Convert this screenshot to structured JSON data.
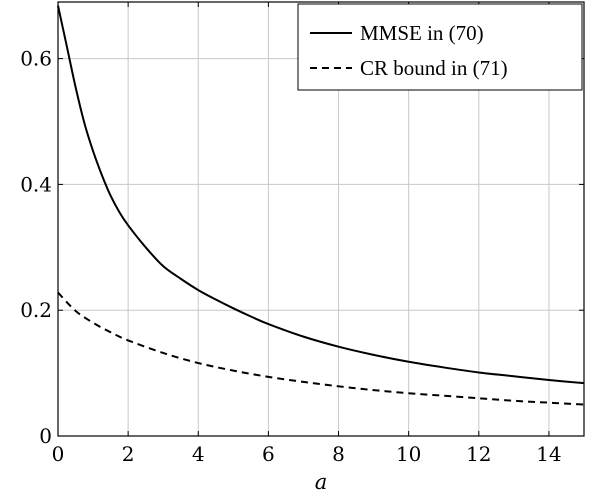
{
  "chart_data": {
    "type": "line",
    "xlabel": "a",
    "ylabel": "",
    "xlim": [
      0,
      15
    ],
    "ylim": [
      0,
      0.69
    ],
    "grid": true,
    "legend_position": "top-right",
    "x_ticks": [
      0,
      2,
      4,
      6,
      8,
      10,
      12,
      14
    ],
    "x_tick_labels": [
      "0",
      "2",
      "4",
      "6",
      "8",
      "10",
      "12",
      "14"
    ],
    "y_ticks": [
      0,
      0.2,
      0.4,
      0.6
    ],
    "y_tick_labels": [
      "0",
      "0.2",
      "0.4",
      "0.6"
    ],
    "series": [
      {
        "name": "MMSE in (70)",
        "style": "solid",
        "color": "#000000",
        "x": [
          0,
          0.25,
          0.5,
          0.75,
          1,
          1.25,
          1.5,
          1.75,
          2,
          2.5,
          3,
          3.5,
          4,
          4.5,
          5,
          5.5,
          6,
          7,
          8,
          9,
          10,
          11,
          12,
          13,
          14,
          15
        ],
        "y": [
          0.684,
          0.62,
          0.555,
          0.498,
          0.453,
          0.415,
          0.382,
          0.356,
          0.335,
          0.3,
          0.27,
          0.25,
          0.232,
          0.217,
          0.203,
          0.19,
          0.178,
          0.158,
          0.142,
          0.129,
          0.118,
          0.109,
          0.101,
          0.095,
          0.089,
          0.084
        ]
      },
      {
        "name": "CR bound in (71)",
        "style": "dashed",
        "color": "#000000",
        "x": [
          0,
          0.5,
          1,
          1.5,
          2,
          3,
          4,
          5,
          6,
          7,
          8,
          9,
          10,
          11,
          12,
          13,
          14,
          15
        ],
        "y": [
          0.228,
          0.199,
          0.18,
          0.165,
          0.152,
          0.132,
          0.116,
          0.104,
          0.094,
          0.086,
          0.079,
          0.073,
          0.068,
          0.064,
          0.06,
          0.056,
          0.053,
          0.05
        ]
      }
    ]
  }
}
